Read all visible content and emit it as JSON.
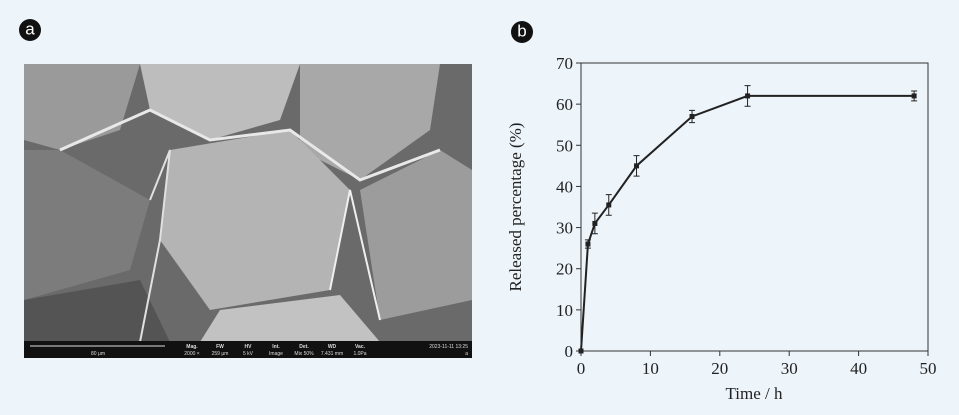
{
  "panel_labels": [
    "a",
    "b"
  ],
  "sem_info": {
    "scale_bar": "80 μm",
    "fields": [
      {
        "label": "Mag.",
        "value": "2000 ×"
      },
      {
        "label": "FW",
        "value": "259 μm"
      },
      {
        "label": "HV",
        "value": "5 kV"
      },
      {
        "label": "Int.",
        "value": "Image"
      },
      {
        "label": "Det.",
        "value": "Mix 50%"
      },
      {
        "label": "WD",
        "value": "7.431 mm"
      },
      {
        "label": "Vac.",
        "value": "1.0Pa"
      }
    ],
    "timestamp": "2023-11-11 13:25",
    "tag": "a"
  },
  "chart_data": {
    "type": "line",
    "x": [
      0,
      1,
      2,
      4,
      8,
      16,
      24,
      48
    ],
    "series": [
      {
        "color": "#222222",
        "values": [
          0,
          26,
          31,
          35.5,
          45,
          57,
          62,
          62
        ],
        "errors": [
          0,
          1,
          2.5,
          2.5,
          2.5,
          1.5,
          2.5,
          1.2
        ]
      }
    ],
    "xlim": [
      0,
      50
    ],
    "ylim": [
      0,
      70
    ],
    "xticks": [
      0,
      10,
      20,
      30,
      40,
      50
    ],
    "yticks": [
      0,
      10,
      20,
      30,
      40,
      50,
      60,
      70
    ],
    "xlabel": "Time / h",
    "ylabel": "Released percentage (%)"
  }
}
